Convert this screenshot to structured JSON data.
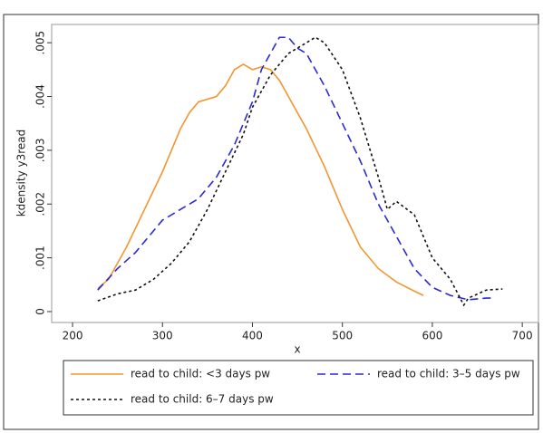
{
  "chart_data": {
    "type": "line",
    "xlabel": "x",
    "ylabel": "kdensity y3read",
    "xlim": [
      176.8,
      718
    ],
    "ylim": [
      -0.000203,
      0.00534
    ],
    "xticks": [
      200,
      300,
      400,
      500,
      600,
      700
    ],
    "yticks": [
      0,
      {
        "value": 0.001,
        "label": ".001"
      },
      {
        "value": 0.002,
        "label": ".002"
      },
      {
        "value": 0.003,
        "label": ".003"
      },
      {
        "value": 0.004,
        "label": ".004"
      },
      {
        "value": 0.005,
        "label": ".005"
      }
    ],
    "grid": false,
    "legend": "bottom",
    "series": [
      {
        "name": "read to child: <3 days pw",
        "color": "#f2962f",
        "line_style": "solid",
        "x": [
          228,
          240,
          260,
          280,
          300,
          320,
          330,
          340,
          360,
          370,
          380,
          390,
          400,
          410,
          420,
          430,
          440,
          460,
          480,
          500,
          520,
          540,
          560,
          580,
          590
        ],
        "values": [
          0.00043,
          0.0006,
          0.0012,
          0.0019,
          0.0026,
          0.0034,
          0.0037,
          0.0039,
          0.004,
          0.0042,
          0.0045,
          0.0046,
          0.0045,
          0.00455,
          0.0045,
          0.0043,
          0.004,
          0.0034,
          0.0027,
          0.0019,
          0.0012,
          0.0008,
          0.00055,
          0.00038,
          0.0003
        ]
      },
      {
        "name": "read to child: 3–5 days pw",
        "color": "#2a2ad4",
        "line_style": "dash",
        "x": [
          228,
          250,
          270,
          290,
          300,
          320,
          340,
          360,
          380,
          400,
          410,
          420,
          430,
          440,
          450,
          460,
          470,
          480,
          500,
          520,
          540,
          560,
          580,
          600,
          620,
          640,
          660,
          670
        ],
        "values": [
          0.0004,
          0.0008,
          0.0011,
          0.0015,
          0.0017,
          0.0019,
          0.0021,
          0.0025,
          0.0031,
          0.0039,
          0.0045,
          0.0048,
          0.0051,
          0.0051,
          0.0049,
          0.0048,
          0.0045,
          0.0042,
          0.0035,
          0.0028,
          0.002,
          0.0014,
          0.0008,
          0.00045,
          0.0003,
          0.00022,
          0.00025,
          0.00025
        ]
      },
      {
        "name": "read to child: 6–7 days pw",
        "color": "#111111",
        "line_style": "shortdash",
        "x": [
          228,
          250,
          270,
          290,
          310,
          330,
          350,
          370,
          390,
          400,
          420,
          440,
          450,
          460,
          470,
          480,
          500,
          520,
          540,
          550,
          560,
          580,
          600,
          620,
          635,
          640,
          660,
          678
        ],
        "values": [
          0.0002,
          0.00033,
          0.0004,
          0.0006,
          0.0009,
          0.0013,
          0.0019,
          0.0026,
          0.0033,
          0.0038,
          0.0044,
          0.0048,
          0.0049,
          0.005,
          0.0051,
          0.005,
          0.0045,
          0.0036,
          0.0025,
          0.0019,
          0.00205,
          0.0018,
          0.001,
          0.0006,
          0.00012,
          0.00025,
          0.0004,
          0.00042
        ]
      }
    ]
  }
}
